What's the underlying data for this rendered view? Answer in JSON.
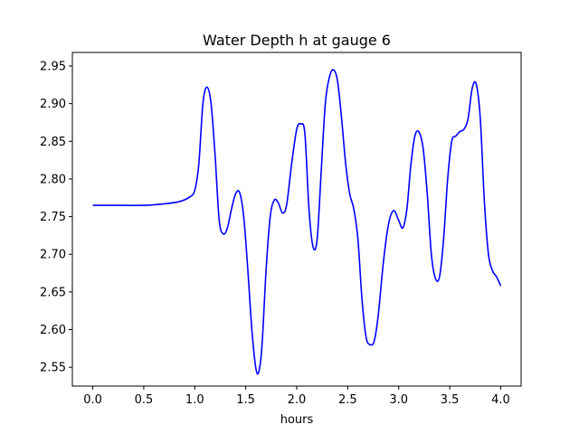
{
  "chart_data": {
    "type": "line",
    "title": "Water Depth h at gauge 6",
    "xlabel": "hours",
    "ylabel": "",
    "xlim": [
      -0.2,
      4.2
    ],
    "ylim": [
      2.525,
      2.968
    ],
    "xticks": [
      0.0,
      0.5,
      1.0,
      1.5,
      2.0,
      2.5,
      3.0,
      3.5,
      4.0
    ],
    "xtick_labels": [
      "0.0",
      "0.5",
      "1.0",
      "1.5",
      "2.0",
      "2.5",
      "3.0",
      "3.5",
      "4.0"
    ],
    "yticks": [
      2.55,
      2.6,
      2.65,
      2.7,
      2.75,
      2.8,
      2.85,
      2.9,
      2.95
    ],
    "ytick_labels": [
      "2.55",
      "2.60",
      "2.65",
      "2.70",
      "2.75",
      "2.80",
      "2.85",
      "2.90",
      "2.95"
    ],
    "grid": false,
    "series": [
      {
        "name": "",
        "color": "#0000ff",
        "x": [
          0.0,
          0.25,
          0.5,
          0.7,
          0.85,
          0.95,
          1.0,
          1.04,
          1.08,
          1.12,
          1.16,
          1.2,
          1.24,
          1.28,
          1.32,
          1.36,
          1.4,
          1.44,
          1.48,
          1.52,
          1.56,
          1.6,
          1.63,
          1.66,
          1.7,
          1.74,
          1.78,
          1.82,
          1.86,
          1.9,
          1.95,
          2.0,
          2.04,
          2.08,
          2.12,
          2.16,
          2.2,
          2.24,
          2.28,
          2.32,
          2.36,
          2.4,
          2.44,
          2.48,
          2.52,
          2.56,
          2.6,
          2.64,
          2.68,
          2.72,
          2.76,
          2.8,
          2.85,
          2.9,
          2.95,
          3.0,
          3.04,
          3.08,
          3.12,
          3.16,
          3.2,
          3.24,
          3.28,
          3.32,
          3.36,
          3.4,
          3.44,
          3.48,
          3.52,
          3.56,
          3.6,
          3.64,
          3.68,
          3.72,
          3.76,
          3.8,
          3.84,
          3.88,
          3.92,
          3.96,
          4.0
        ],
        "y": [
          2.765,
          2.765,
          2.765,
          2.767,
          2.77,
          2.776,
          2.785,
          2.82,
          2.9,
          2.922,
          2.9,
          2.83,
          2.745,
          2.727,
          2.735,
          2.76,
          2.78,
          2.782,
          2.75,
          2.68,
          2.6,
          2.548,
          2.545,
          2.58,
          2.68,
          2.75,
          2.772,
          2.768,
          2.755,
          2.765,
          2.82,
          2.866,
          2.873,
          2.86,
          2.76,
          2.71,
          2.72,
          2.81,
          2.9,
          2.935,
          2.945,
          2.93,
          2.88,
          2.82,
          2.78,
          2.76,
          2.72,
          2.64,
          2.59,
          2.58,
          2.585,
          2.62,
          2.69,
          2.74,
          2.758,
          2.745,
          2.735,
          2.76,
          2.82,
          2.858,
          2.862,
          2.84,
          2.78,
          2.7,
          2.668,
          2.67,
          2.72,
          2.8,
          2.85,
          2.857,
          2.863,
          2.866,
          2.88,
          2.92,
          2.926,
          2.88,
          2.77,
          2.7,
          2.678,
          2.67,
          2.658
        ]
      }
    ]
  }
}
